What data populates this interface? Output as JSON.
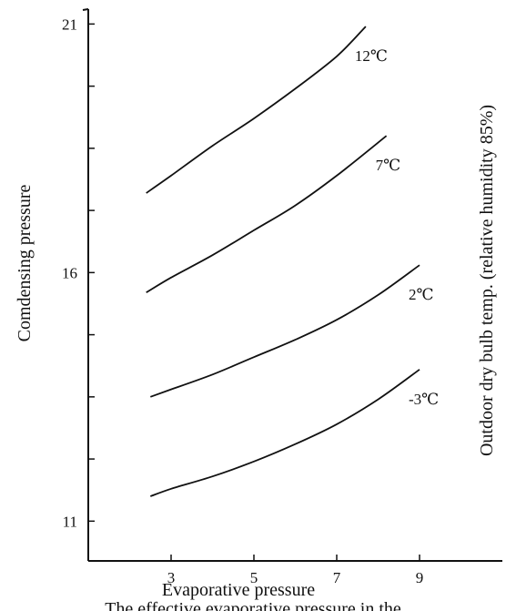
{
  "chart_data": {
    "type": "line",
    "xlabel": "Evaporative pressure",
    "ylabel": "Comdensing pressure",
    "right_label": "Outdoor dry bulb temp. (relative humidity 85%)",
    "xlim": [
      1,
      11
    ],
    "ylim": [
      10.2,
      21.3
    ],
    "x_ticks": [
      3,
      5,
      7,
      9
    ],
    "y_ticks": [
      11,
      16,
      21
    ],
    "y_minor_ticks": [
      11,
      12.25,
      13.5,
      14.75,
      16,
      17.25,
      18.5,
      19.75,
      21
    ],
    "grid": false,
    "series": [
      {
        "name": "12℃",
        "x": [
          2.4,
          3,
          4,
          5,
          6,
          7,
          7.7
        ],
        "y": [
          17.6,
          17.95,
          18.55,
          19.1,
          19.7,
          20.35,
          20.95
        ]
      },
      {
        "name": "7℃",
        "x": [
          2.4,
          3,
          4,
          5,
          6,
          7,
          8.2
        ],
        "y": [
          15.6,
          15.9,
          16.35,
          16.85,
          17.35,
          17.95,
          18.75
        ]
      },
      {
        "name": "2℃",
        "x": [
          2.5,
          3,
          4,
          5,
          6,
          7,
          8,
          9
        ],
        "y": [
          13.5,
          13.65,
          13.95,
          14.3,
          14.65,
          15.05,
          15.55,
          16.15
        ]
      },
      {
        "name": "-3℃",
        "x": [
          2.5,
          3,
          4,
          5,
          6,
          7,
          8,
          9
        ],
        "y": [
          11.5,
          11.65,
          11.9,
          12.2,
          12.55,
          12.95,
          13.45,
          14.05
        ]
      }
    ]
  },
  "caption": "The effective evaporative pressure in the"
}
